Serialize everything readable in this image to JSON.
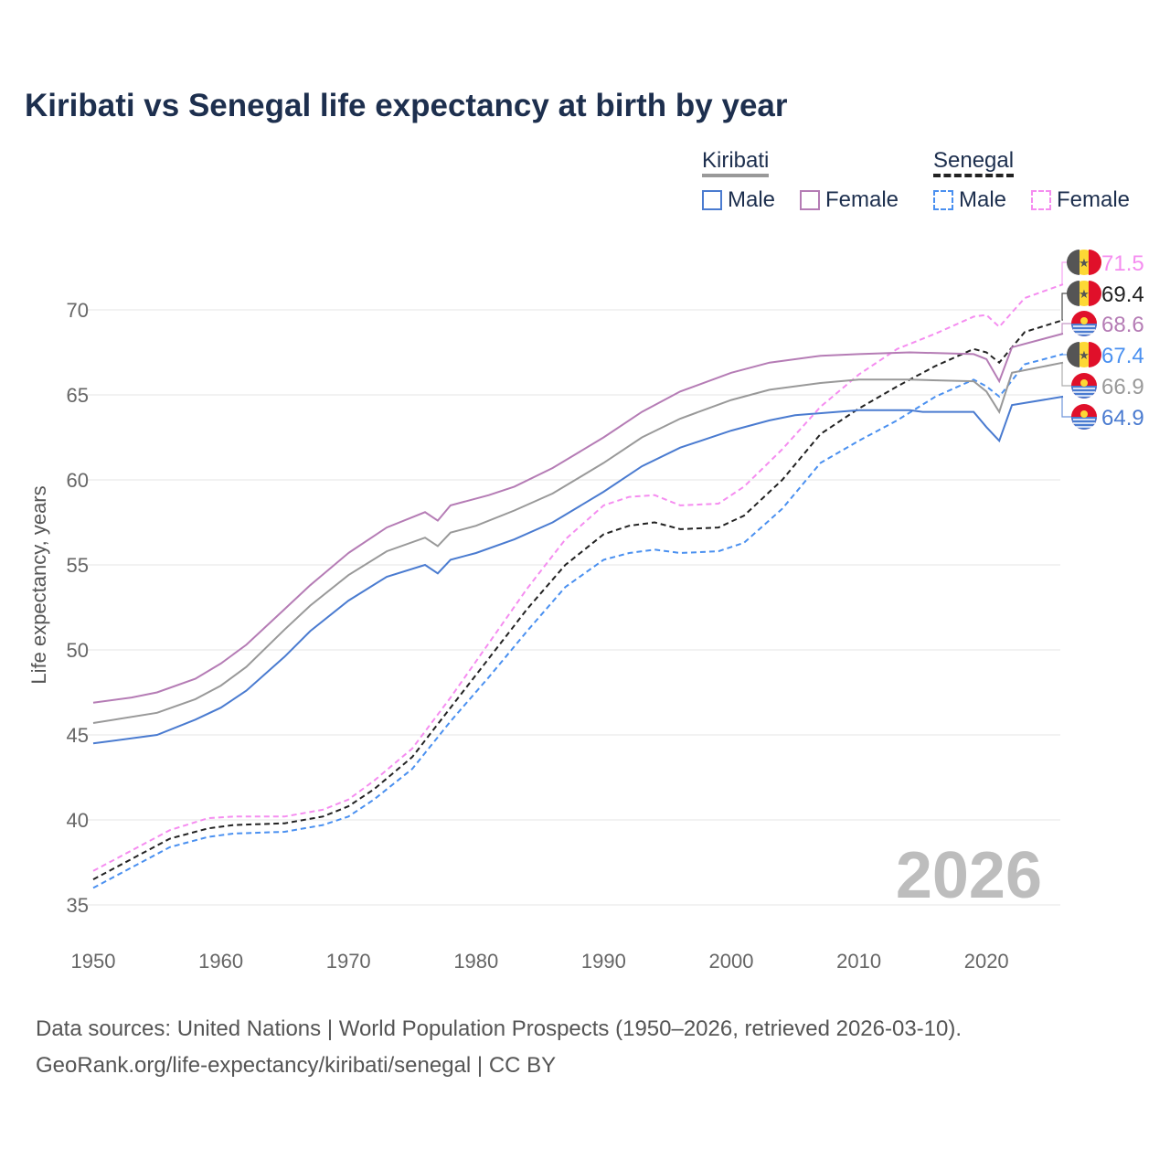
{
  "chart_data": {
    "type": "line",
    "title": "Kiribati vs Senegal life expectancy at birth by year",
    "xlabel": "",
    "ylabel": "Life expectancy, years",
    "xlim": [
      1950,
      2026
    ],
    "ylim": [
      35,
      72
    ],
    "xticks": [
      "1950",
      "1960",
      "1970",
      "1980",
      "1990",
      "2000",
      "2010",
      "2020"
    ],
    "yticks": [
      "35",
      "40",
      "45",
      "50",
      "55",
      "60",
      "65",
      "70"
    ],
    "grid": true,
    "year_watermark": "2026",
    "legend": {
      "groups": [
        {
          "label": "Kiribati",
          "items": [
            "Male",
            "Female"
          ]
        },
        {
          "label": "Senegal",
          "items": [
            "Male",
            "Female"
          ]
        }
      ],
      "placement": "top-right"
    },
    "series": [
      {
        "name": "Senegal Female",
        "country": "Senegal",
        "color": "#f58df0",
        "dashed": true,
        "end_label": "71.5",
        "x": [
          1950,
          1953,
          1956,
          1959,
          1961,
          1965,
          1968,
          1970,
          1972,
          1975,
          1978,
          1981,
          1984,
          1987,
          1990,
          1992,
          1994,
          1996,
          1999,
          2001,
          2004,
          2007,
          2010,
          2013,
          2016,
          2019,
          2020,
          2021,
          2023,
          2026
        ],
        "y": [
          37.0,
          38.2,
          39.4,
          40.1,
          40.2,
          40.2,
          40.6,
          41.2,
          42.3,
          44.2,
          47.2,
          50.4,
          53.6,
          56.5,
          58.5,
          59.0,
          59.1,
          58.5,
          58.6,
          59.6,
          61.8,
          64.3,
          66.2,
          67.7,
          68.6,
          69.6,
          69.7,
          69.0,
          70.7,
          71.5
        ]
      },
      {
        "name": "Senegal",
        "country": "Senegal",
        "color": "#222222",
        "dashed": true,
        "end_label": "69.4",
        "x": [
          1950,
          1953,
          1956,
          1959,
          1961,
          1965,
          1968,
          1970,
          1972,
          1975,
          1978,
          1981,
          1984,
          1987,
          1990,
          1992,
          1994,
          1996,
          1999,
          2001,
          2004,
          2007,
          2010,
          2013,
          2016,
          2019,
          2020,
          2021,
          2023,
          2026
        ],
        "y": [
          36.5,
          37.7,
          38.9,
          39.5,
          39.7,
          39.8,
          40.2,
          40.8,
          41.8,
          43.7,
          46.6,
          49.5,
          52.4,
          55.0,
          56.8,
          57.3,
          57.5,
          57.1,
          57.2,
          57.9,
          60.0,
          62.7,
          64.2,
          65.5,
          66.7,
          67.7,
          67.5,
          66.9,
          68.7,
          69.4
        ]
      },
      {
        "name": "Kiribati Female",
        "country": "Kiribati",
        "color": "#b57cb5",
        "dashed": false,
        "end_label": "68.6",
        "x": [
          1950,
          1953,
          1955,
          1958,
          1960,
          1962,
          1965,
          1967,
          1970,
          1973,
          1976,
          1977,
          1978,
          1981,
          1983,
          1986,
          1990,
          1993,
          1996,
          2000,
          2003,
          2007,
          2010,
          2014,
          2019,
          2020,
          2021,
          2022,
          2026
        ],
        "y": [
          46.9,
          47.2,
          47.5,
          48.3,
          49.2,
          50.3,
          52.4,
          53.8,
          55.7,
          57.2,
          58.1,
          57.6,
          58.5,
          59.1,
          59.6,
          60.7,
          62.5,
          64.0,
          65.2,
          66.3,
          66.9,
          67.3,
          67.4,
          67.5,
          67.4,
          67.1,
          65.8,
          67.8,
          68.6
        ]
      },
      {
        "name": "Senegal Male",
        "country": "Senegal",
        "color": "#4a90f0",
        "dashed": true,
        "end_label": "67.4",
        "x": [
          1950,
          1953,
          1956,
          1959,
          1961,
          1965,
          1968,
          1970,
          1972,
          1975,
          1978,
          1981,
          1984,
          1987,
          1990,
          1992,
          1994,
          1996,
          1999,
          2001,
          2004,
          2007,
          2010,
          2013,
          2016,
          2019,
          2020,
          2021,
          2023,
          2026
        ],
        "y": [
          36.0,
          37.2,
          38.4,
          39.0,
          39.2,
          39.3,
          39.7,
          40.2,
          41.2,
          43.0,
          45.8,
          48.4,
          51.1,
          53.7,
          55.3,
          55.7,
          55.9,
          55.7,
          55.8,
          56.3,
          58.3,
          61.0,
          62.3,
          63.5,
          64.9,
          65.9,
          65.5,
          64.9,
          66.8,
          67.4
        ]
      },
      {
        "name": "Kiribati",
        "country": "Kiribati",
        "color": "#999999",
        "dashed": false,
        "end_label": "66.9",
        "x": [
          1950,
          1955,
          1958,
          1960,
          1962,
          1965,
          1967,
          1970,
          1973,
          1976,
          1977,
          1978,
          1980,
          1983,
          1986,
          1990,
          1993,
          1996,
          2000,
          2003,
          2007,
          2010,
          2014,
          2019,
          2020,
          2021,
          2022,
          2026
        ],
        "y": [
          45.7,
          46.3,
          47.1,
          47.9,
          49.0,
          51.2,
          52.6,
          54.4,
          55.8,
          56.6,
          56.1,
          56.9,
          57.3,
          58.2,
          59.2,
          61.0,
          62.5,
          63.6,
          64.7,
          65.3,
          65.7,
          65.9,
          65.9,
          65.8,
          65.2,
          64.0,
          66.3,
          66.9
        ]
      },
      {
        "name": "Kiribati Male",
        "country": "Kiribati",
        "color": "#4a7bd0",
        "dashed": false,
        "end_label": "64.9",
        "x": [
          1950,
          1955,
          1958,
          1960,
          1962,
          1965,
          1967,
          1970,
          1973,
          1976,
          1977,
          1978,
          1980,
          1983,
          1986,
          1990,
          1993,
          1996,
          2000,
          2003,
          2005,
          2010,
          2014,
          2015,
          2019,
          2020,
          2021,
          2022,
          2026
        ],
        "y": [
          44.5,
          45.0,
          45.9,
          46.6,
          47.6,
          49.6,
          51.1,
          52.9,
          54.3,
          55.0,
          54.5,
          55.3,
          55.7,
          56.5,
          57.5,
          59.3,
          60.8,
          61.9,
          62.9,
          63.5,
          63.8,
          64.1,
          64.1,
          64.0,
          64.0,
          63.1,
          62.3,
          64.4,
          64.9
        ]
      }
    ]
  },
  "footer": {
    "line1": "Data sources: United Nations | World Population Prospects (1950–2026, retrieved 2026-03-10).",
    "line2": "GeoRank.org/life-expectancy/kiribati/senegal | CC BY"
  }
}
